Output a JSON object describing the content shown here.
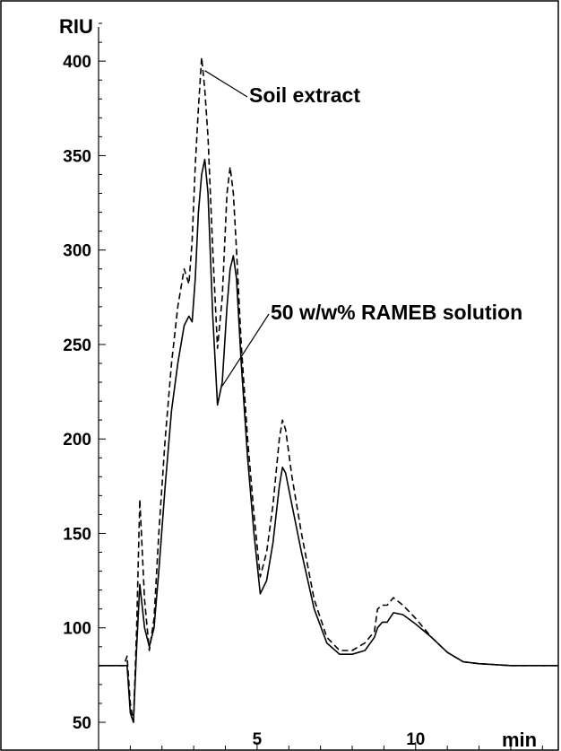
{
  "chart_data": {
    "type": "line",
    "xlabel": "min",
    "ylabel": "RIU",
    "xlim": [
      0,
      14.5
    ],
    "ylim": [
      50,
      430
    ],
    "x_ticks": [
      5,
      10
    ],
    "x_tick_labels": [
      "5",
      "10"
    ],
    "y_ticks": [
      50,
      100,
      150,
      200,
      250,
      300,
      350,
      400
    ],
    "y_tick_labels": [
      "50",
      "100",
      "150",
      "200",
      "250",
      "300",
      "350",
      "400"
    ],
    "grid": false,
    "annotations": [
      {
        "text": "Soil extract",
        "series": 0,
        "point_x": 3.35,
        "point_y": 395
      },
      {
        "text": "50 w/w% RAMEB solution",
        "series": 1,
        "point_x": 3.9,
        "point_y": 228
      }
    ],
    "series": [
      {
        "name": "Soil extract",
        "style": "dashed",
        "color": "#000000",
        "x": [
          0.0,
          0.4,
          0.8,
          0.9,
          1.0,
          1.1,
          1.2,
          1.3,
          1.45,
          1.6,
          1.75,
          1.9,
          2.1,
          2.3,
          2.5,
          2.7,
          2.85,
          2.95,
          3.05,
          3.15,
          3.25,
          3.35,
          3.45,
          3.6,
          3.75,
          3.9,
          4.05,
          4.15,
          4.25,
          4.35,
          4.5,
          4.7,
          4.9,
          5.1,
          5.3,
          5.5,
          5.7,
          5.8,
          5.9,
          6.1,
          6.4,
          6.8,
          7.2,
          7.6,
          8.0,
          8.4,
          8.7,
          8.8,
          8.95,
          9.1,
          9.3,
          9.6,
          10.0,
          10.5,
          11.0,
          11.5,
          12.0,
          13.0,
          14.5
        ],
        "y": [
          80,
          80,
          80,
          85,
          60,
          50,
          100,
          168,
          115,
          88,
          105,
          150,
          200,
          240,
          270,
          290,
          282,
          305,
          345,
          375,
          402,
          385,
          360,
          300,
          248,
          275,
          330,
          344,
          330,
          300,
          250,
          200,
          160,
          127,
          140,
          165,
          200,
          210,
          205,
          180,
          150,
          115,
          95,
          88,
          88,
          92,
          98,
          110,
          112,
          112,
          116,
          112,
          105,
          95,
          87,
          82,
          81,
          80,
          80
        ]
      },
      {
        "name": "50 w/w% RAMEB solution",
        "style": "solid",
        "color": "#000000",
        "x": [
          0.0,
          0.4,
          0.8,
          0.9,
          1.0,
          1.1,
          1.2,
          1.3,
          1.45,
          1.6,
          1.75,
          1.9,
          2.1,
          2.3,
          2.5,
          2.7,
          2.85,
          2.95,
          3.05,
          3.15,
          3.25,
          3.35,
          3.45,
          3.6,
          3.75,
          3.9,
          4.05,
          4.15,
          4.25,
          4.35,
          4.5,
          4.7,
          4.9,
          5.1,
          5.3,
          5.5,
          5.7,
          5.8,
          5.9,
          6.1,
          6.4,
          6.8,
          7.2,
          7.6,
          8.0,
          8.4,
          8.7,
          8.8,
          8.95,
          9.1,
          9.3,
          9.6,
          10.0,
          10.5,
          11.0,
          11.5,
          12.0,
          13.0,
          14.5
        ],
        "y": [
          80,
          80,
          80,
          80,
          55,
          50,
          90,
          123,
          100,
          90,
          100,
          130,
          175,
          215,
          240,
          260,
          265,
          262,
          285,
          320,
          340,
          348,
          330,
          265,
          218,
          230,
          270,
          290,
          297,
          285,
          240,
          190,
          150,
          118,
          125,
          145,
          175,
          185,
          182,
          165,
          140,
          110,
          92,
          86,
          86,
          88,
          95,
          100,
          103,
          103,
          108,
          107,
          102,
          95,
          87,
          82,
          81,
          80,
          80
        ]
      }
    ]
  }
}
